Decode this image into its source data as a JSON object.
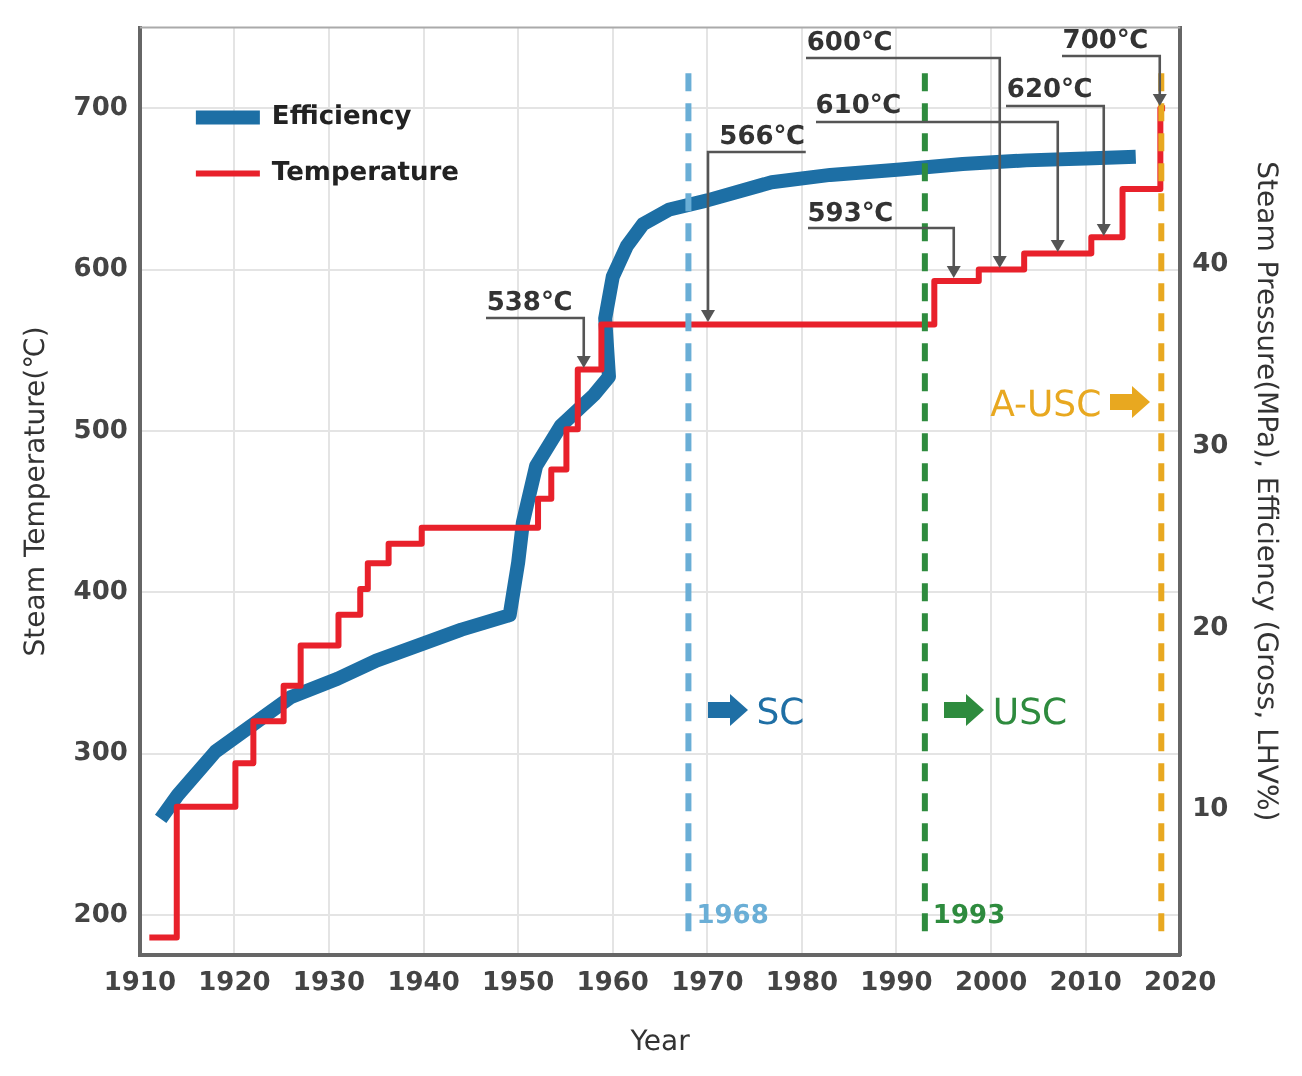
{
  "chart_data": {
    "type": "line",
    "xlabel": "Year",
    "ylabel": "Steam Temperature(℃)",
    "y2label": "Steam Pressure(MPa), Efficiency (Gross, LHV%)",
    "xlim": [
      1910,
      2020
    ],
    "xticks": [
      1910,
      1920,
      1930,
      1940,
      1950,
      1960,
      1970,
      1980,
      1990,
      2000,
      2010,
      2020
    ],
    "ylim": [
      175,
      750
    ],
    "yticks": [
      200,
      300,
      400,
      500,
      600,
      700
    ],
    "y2lim": [
      2,
      53
    ],
    "y2ticks": [
      10,
      20,
      30,
      40
    ],
    "grid": true,
    "legend": "top left",
    "series": [
      {
        "name": "Efficiency",
        "color": "#1d6fa5",
        "type": "line",
        "axis": "y2",
        "x": [
          1912.2,
          1914,
          1918,
          1922.8,
          1926,
          1930.9,
          1935,
          1939.8,
          1944,
          1949.1,
          1950,
          1950.5,
          1951.9,
          1954.5,
          1958,
          1959.6,
          1959.2,
          1960,
          1961.5,
          1963.2,
          1966,
          1970,
          1976.8,
          1983,
          1990.4,
          1997,
          2003.7,
          2010,
          2015.3
        ],
        "values": [
          9.5,
          10.8,
          13.2,
          15,
          16.2,
          17.2,
          18.2,
          19.1,
          19.9,
          20.7,
          23.6,
          25.8,
          28.9,
          31.1,
          32.8,
          33.8,
          37,
          39.3,
          41,
          42.2,
          43,
          43.5,
          44.5,
          44.9,
          45.2,
          45.5,
          45.7,
          45.8,
          45.9
        ]
      },
      {
        "name": "Temperature",
        "color": "#e8212b",
        "type": "step",
        "x": [
          1911,
          1913.9,
          1920.1,
          1922,
          1925.2,
          1927,
          1931,
          1933.3,
          1934.1,
          1936.3,
          1939.8,
          1952.1,
          1953.5,
          1955.1,
          1956.3,
          1958.8,
          1994,
          1998.7,
          2003.5,
          2010.6,
          2013.9,
          2017.9,
          2018.4
        ],
        "values": [
          186,
          267,
          294,
          320,
          342,
          367,
          386,
          402,
          418,
          430,
          440,
          458,
          476,
          501,
          538,
          566,
          593,
          600,
          610,
          620,
          650,
          700,
          700
        ]
      }
    ],
    "ref_lines": [
      {
        "axis": "x",
        "value": 1968,
        "label": "1968",
        "color": "#6aaed6",
        "line_style": "dashed"
      },
      {
        "axis": "x",
        "value": 1993,
        "label": "1993",
        "color": "#2e8b3e",
        "line_style": "dashed"
      },
      {
        "axis": "x",
        "value": 2018,
        "color": "#e8a820",
        "line_style": "dashed"
      }
    ],
    "annotations": [
      {
        "text": "538℃",
        "x": 1957,
        "y": 538
      },
      {
        "text": "566℃",
        "x": 1970,
        "y": 566
      },
      {
        "text": "593℃",
        "x": 1996,
        "y": 593
      },
      {
        "text": "600℃",
        "x": 2001,
        "y": 600
      },
      {
        "text": "610℃",
        "x": 2007,
        "y": 610
      },
      {
        "text": "620℃",
        "x": 2012,
        "y": 620
      },
      {
        "text": "700℃",
        "x": 2017.9,
        "y": 700
      },
      {
        "text": "SC",
        "x": 1968,
        "y": 327
      },
      {
        "text": "USC",
        "x": 1993,
        "y": 327
      },
      {
        "text": "A-USC",
        "x": 2018,
        "y": 518
      }
    ]
  }
}
